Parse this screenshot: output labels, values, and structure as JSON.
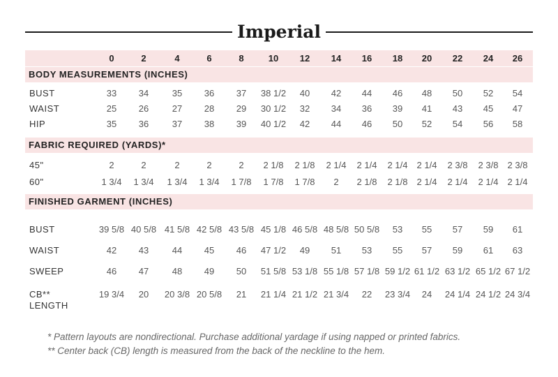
{
  "title": "Imperial",
  "sizes": [
    "0",
    "2",
    "4",
    "6",
    "8",
    "10",
    "12",
    "14",
    "16",
    "18",
    "20",
    "22",
    "24",
    "26"
  ],
  "sections": [
    {
      "title": "BODY MEASUREMENTS (INCHES)",
      "rows": [
        {
          "label": "BUST",
          "values": [
            "33",
            "34",
            "35",
            "36",
            "37",
            "38 1/2",
            "40",
            "42",
            "44",
            "46",
            "48",
            "50",
            "52",
            "54"
          ]
        },
        {
          "label": "WAIST",
          "values": [
            "25",
            "26",
            "27",
            "28",
            "29",
            "30 1/2",
            "32",
            "34",
            "36",
            "39",
            "41",
            "43",
            "45",
            "47"
          ]
        },
        {
          "label": "HIP",
          "values": [
            "35",
            "36",
            "37",
            "38",
            "39",
            "40 1/2",
            "42",
            "44",
            "46",
            "50",
            "52",
            "54",
            "56",
            "58"
          ]
        }
      ]
    },
    {
      "title": "FABRIC REQUIRED (YARDS)*",
      "rows": [
        {
          "label": "45\"",
          "values": [
            "2",
            "2",
            "2",
            "2",
            "2",
            "2 1/8",
            "2 1/8",
            "2 1/4",
            "2 1/4",
            "2 1/4",
            "2 1/4",
            "2 3/8",
            "2 3/8",
            "2 3/8"
          ]
        },
        {
          "label": "60\"",
          "values": [
            "1 3/4",
            "1 3/4",
            "1 3/4",
            "1 3/4",
            "1 7/8",
            "1 7/8",
            "1 7/8",
            "2",
            "2 1/8",
            "2 1/8",
            "2 1/4",
            "2 1/4",
            "2 1/4",
            "2 1/4"
          ]
        }
      ]
    },
    {
      "title": "FINISHED GARMENT (INCHES)",
      "rows": [
        {
          "label": "BUST",
          "values": [
            "39 5/8",
            "40 5/8",
            "41 5/8",
            "42 5/8",
            "43 5/8",
            "45 1/8",
            "46 5/8",
            "48 5/8",
            "50 5/8",
            "53",
            "55",
            "57",
            "59",
            "61"
          ]
        },
        {
          "label": "WAIST",
          "values": [
            "42",
            "43",
            "44",
            "45",
            "46",
            "47 1/2",
            "49",
            "51",
            "53",
            "55",
            "57",
            "59",
            "61",
            "63"
          ]
        },
        {
          "label": "SWEEP",
          "values": [
            "46",
            "47",
            "48",
            "49",
            "50",
            "51 5/8",
            "53 1/8",
            "55 1/8",
            "57 1/8",
            "59 1/2",
            "61 1/2",
            "63 1/2",
            "65 1/2",
            "67 1/2"
          ]
        },
        {
          "label": "CB**\nLENGTH",
          "values": [
            "19 3/4",
            "20",
            "20 3/8",
            "20 5/8",
            "21",
            "21 1/4",
            "21 1/2",
            "21 3/4",
            "22",
            "23 3/4",
            "24",
            "24 1/4",
            "24 1/2",
            "24 3/4"
          ]
        }
      ]
    }
  ],
  "footnotes": [
    "* Pattern layouts are nondirectional. Purchase additional yardage if using napped or printed fabrics.",
    "** Center back (CB) length is measured from the back of the neckline to the hem."
  ]
}
